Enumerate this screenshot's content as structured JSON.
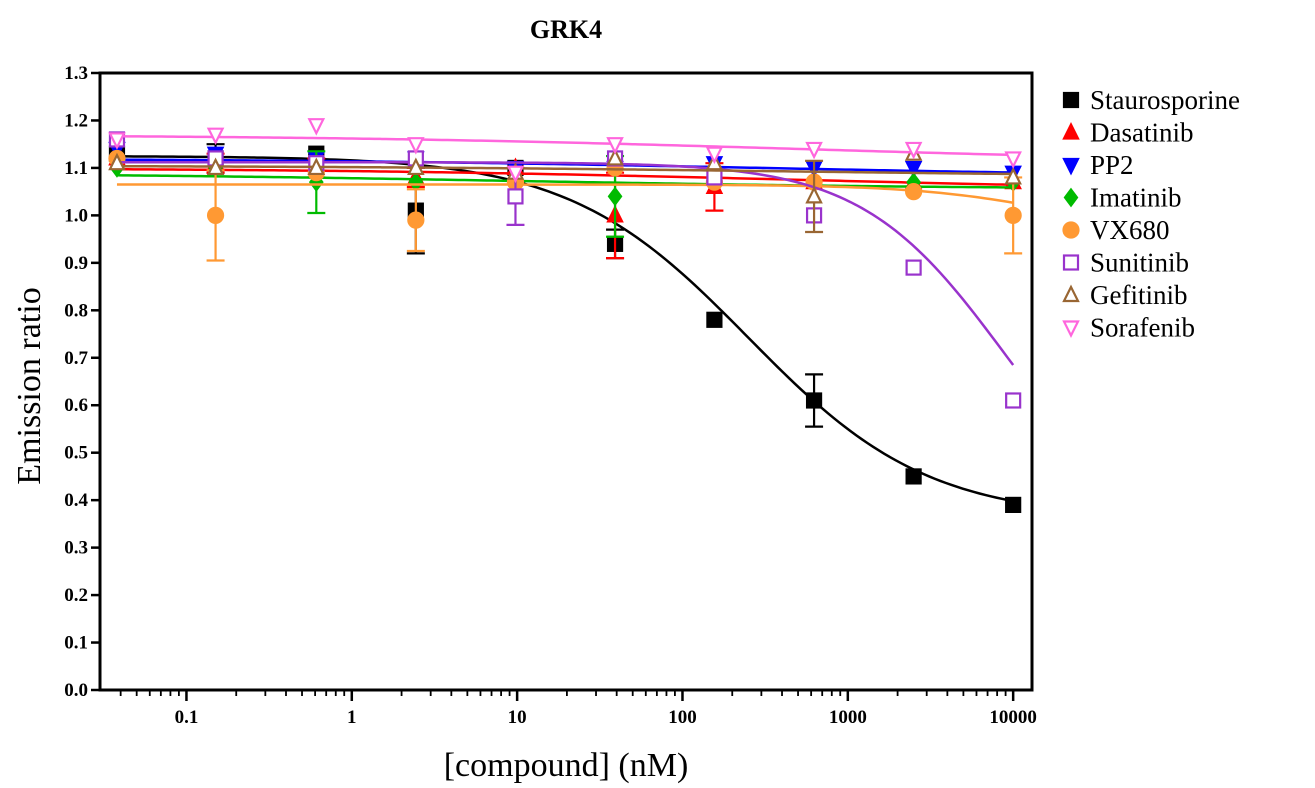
{
  "chart_data": {
    "type": "scatter",
    "title": "GRK4",
    "xlabel": "[compound] (nM)",
    "ylabel": "Emission ratio",
    "x_scale": "log",
    "xlim": [
      0.03,
      13000
    ],
    "ylim": [
      0.0,
      1.3
    ],
    "x_ticks": [
      0.1,
      1,
      10,
      100,
      1000,
      10000
    ],
    "x_tick_labels": [
      "0.1",
      "1",
      "10",
      "100",
      "1000",
      "10000"
    ],
    "y_ticks": [
      0.0,
      0.1,
      0.2,
      0.3,
      0.4,
      0.5,
      0.6,
      0.7,
      0.8,
      0.9,
      1.0,
      1.1,
      1.2,
      1.3
    ],
    "y_tick_labels": [
      "0.0",
      "0.1",
      "0.2",
      "0.3",
      "0.4",
      "0.5",
      "0.6",
      "0.7",
      "0.8",
      "0.9",
      "1.0",
      "1.1",
      "1.2",
      "1.3"
    ],
    "grid": false,
    "legend_position": "right",
    "x": [
      0.038,
      0.15,
      0.61,
      2.44,
      9.77,
      39.1,
      156,
      625,
      2500,
      10000
    ],
    "series": [
      {
        "name": "Staurosporine",
        "color": "#000000",
        "marker": "square-filled",
        "y": [
          1.13,
          1.12,
          1.13,
          1.01,
          1.1,
          0.94,
          0.78,
          0.61,
          0.45,
          0.39
        ],
        "err": [
          0.01,
          0.03,
          0.01,
          0.09,
          0.01,
          0.03,
          0.01,
          0.055,
          0.01,
          0.01
        ],
        "fit": {
          "top": 1.125,
          "bottom": 0.36,
          "ic50": 250,
          "hill": 0.8
        }
      },
      {
        "name": "Dasatinib",
        "color": "#ff0000",
        "marker": "triangle-up-filled",
        "y": [
          1.12,
          1.11,
          1.1,
          1.08,
          1.1,
          1.0,
          1.06,
          1.07,
          1.07,
          1.07
        ],
        "err": [
          0.01,
          0.02,
          0.02,
          0.02,
          0.01,
          0.09,
          0.05,
          0.01,
          0.01,
          0.01
        ],
        "fit": {
          "top": 1.1,
          "bottom": 1.05,
          "ic50": 500,
          "hill": 0.3
        }
      },
      {
        "name": "PP2",
        "color": "#0000ff",
        "marker": "triangle-down-filled",
        "y": [
          1.14,
          1.13,
          1.12,
          1.12,
          1.1,
          1.1,
          1.11,
          1.1,
          1.1,
          1.09
        ],
        "err": [
          0.01,
          0.01,
          0.01,
          0.01,
          0.01,
          0.01,
          0.01,
          0.01,
          0.01,
          0.01
        ],
        "fit": {
          "top": 1.12,
          "bottom": 1.08,
          "ic50": 300,
          "hill": 0.3
        }
      },
      {
        "name": "Imatinib",
        "color": "#00bb00",
        "marker": "diamond-filled",
        "y": [
          1.1,
          1.1,
          1.07,
          1.07,
          1.07,
          1.04,
          1.08,
          1.07,
          1.07,
          1.07
        ],
        "err": [
          0.01,
          0.01,
          0.065,
          0.01,
          0.01,
          0.085,
          0.01,
          0.01,
          0.01,
          0.01
        ],
        "fit": {
          "top": 1.09,
          "bottom": 1.055,
          "ic50": 10,
          "hill": 0.3
        }
      },
      {
        "name": "VX680",
        "color": "#ff9933",
        "marker": "circle-filled",
        "y": [
          1.12,
          1.0,
          1.09,
          0.99,
          1.07,
          1.1,
          1.07,
          1.07,
          1.05,
          1.0
        ],
        "err": [
          0.01,
          0.095,
          0.01,
          0.065,
          0.01,
          0.01,
          0.01,
          0.01,
          0.01,
          0.08
        ],
        "fit": {
          "top": 1.065,
          "bottom": 0.95,
          "ic50": 20000,
          "hill": 1.0
        }
      },
      {
        "name": "Sunitinib",
        "color": "#9933cc",
        "marker": "square-open",
        "y": [
          1.16,
          1.12,
          1.11,
          1.12,
          1.04,
          1.12,
          1.08,
          1.0,
          0.89,
          0.61
        ],
        "err": [
          0.01,
          0.01,
          0.01,
          0.01,
          0.06,
          0.01,
          0.01,
          0.01,
          0.01,
          0.01
        ],
        "fit": {
          "top": 1.112,
          "bottom": 0.3,
          "ic50": 9000,
          "hill": 1.0
        }
      },
      {
        "name": "Gefitinib",
        "color": "#996633",
        "marker": "triangle-up-open",
        "y": [
          1.11,
          1.1,
          1.1,
          1.1,
          1.09,
          1.12,
          1.11,
          1.04,
          1.13,
          1.08
        ],
        "err": [
          0.01,
          0.01,
          0.01,
          0.01,
          0.01,
          0.01,
          0.01,
          0.075,
          0.01,
          0.01
        ],
        "fit": {
          "top": 1.105,
          "bottom": 1.08,
          "ic50": 500,
          "hill": 0.3
        }
      },
      {
        "name": "Sorafenib",
        "color": "#ff66dd",
        "marker": "triangle-down-open",
        "y": [
          1.16,
          1.17,
          1.19,
          1.15,
          1.09,
          1.15,
          1.13,
          1.14,
          1.14,
          1.12
        ],
        "err": [
          0.01,
          0.01,
          0.01,
          0.01,
          0.01,
          0.01,
          0.01,
          0.01,
          0.01,
          0.01
        ],
        "fit": {
          "top": 1.17,
          "bottom": 1.11,
          "ic50": 500,
          "hill": 0.3
        }
      }
    ]
  }
}
